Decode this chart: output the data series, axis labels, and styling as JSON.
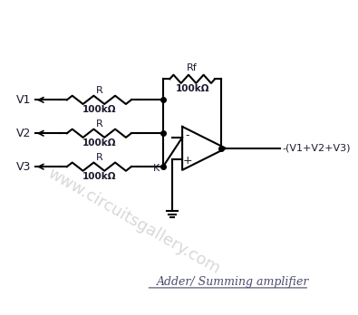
{
  "bg_color": "#ffffff",
  "line_color": "#000000",
  "text_color": "#1a1a2e",
  "resistor_color": "#000000",
  "label_color": "#1a1a2e",
  "watermark_color": "#c8c8c8",
  "title": "Adder/ Summing amplifier",
  "title_fontsize": 10,
  "watermark": "www.circuitsgallery.com",
  "v1_label": "V1",
  "v2_label": "V2",
  "v3_label": "V3",
  "r1_label": "R",
  "r1_val": "100kΩ",
  "r2_label": "R",
  "r2_val": "100kΩ",
  "r3_label": "R",
  "r3_val": "100kΩ",
  "rf_label": "Rf",
  "rf_val": "100kΩ",
  "k_label": "K",
  "out_label": "-(V1+V2+V3)",
  "minus_label": "-",
  "plus_label": "+"
}
